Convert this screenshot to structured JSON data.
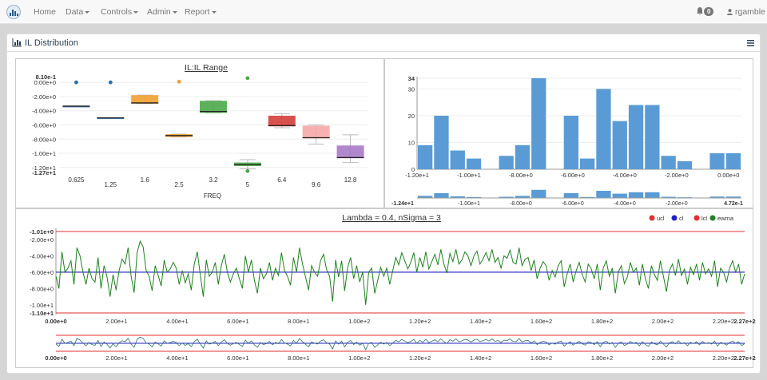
{
  "nav": {
    "items": [
      {
        "label": "Home",
        "dropdown": false
      },
      {
        "label": "Data",
        "dropdown": true
      },
      {
        "label": "Controls",
        "dropdown": true
      },
      {
        "label": "Admin",
        "dropdown": true
      },
      {
        "label": "Report",
        "dropdown": true
      }
    ],
    "notification_count": "0",
    "user": "rgamble"
  },
  "panel": {
    "title": "IL Distribution",
    "icon": "bar-chart-icon",
    "menu_icon": "hamburger-menu-icon"
  },
  "chart_data": [
    {
      "type": "box",
      "title": "IL:IL Range",
      "xlabel": "FREQ",
      "ylabel": "",
      "ylim": [
        -12.7,
        0.81
      ],
      "y_tick_labels": [
        "8.10e-1",
        "0.00e+0",
        "-2.00e+0",
        "-4.00e+0",
        "-6.00e+0",
        "-8.00e+0",
        "-1.00e+1",
        "-1.20e+1",
        "-1.27e+1"
      ],
      "categories": [
        "0.625",
        "1.25",
        "1.6",
        "2.5",
        "3.2",
        "5",
        "6.4",
        "9.6",
        "12.8"
      ],
      "series": [
        {
          "color": "#2f6fa8",
          "q1": -3.35,
          "median": -3.35,
          "q3": -3.35,
          "low": -3.35,
          "high": -3.35,
          "outliers": [
            0.0
          ]
        },
        {
          "color": "#2f6fa8",
          "q1": -5.0,
          "median": -5.0,
          "q3": -5.0,
          "low": -5.0,
          "high": -5.0,
          "outliers": [
            0.0
          ]
        },
        {
          "color": "#f0a030",
          "q1": -3.0,
          "median": -2.9,
          "q3": -1.8,
          "low": -3.0,
          "high": -1.8,
          "outliers": []
        },
        {
          "color": "#f0a030",
          "q1": -7.7,
          "median": -7.5,
          "q3": -7.3,
          "low": -7.7,
          "high": -7.3,
          "outliers": [
            0.1
          ]
        },
        {
          "color": "#4aa84a",
          "q1": -4.3,
          "median": -4.1,
          "q3": -2.6,
          "low": -4.3,
          "high": -2.6,
          "outliers": []
        },
        {
          "color": "#4aa84a",
          "q1": -11.8,
          "median": -11.6,
          "q3": -11.3,
          "low": -12.2,
          "high": -10.9,
          "outliers": [
            0.6,
            -12.5
          ]
        },
        {
          "color": "#d43f3a",
          "q1": -6.2,
          "median": -6.1,
          "q3": -4.7,
          "low": -6.4,
          "high": -4.4,
          "outliers": []
        },
        {
          "color": "#f7a8a8",
          "q1": -7.9,
          "median": -7.8,
          "q3": -6.1,
          "low": -8.7,
          "high": -6.0,
          "outliers": []
        },
        {
          "color": "#a87ac8",
          "q1": -10.7,
          "median": -10.6,
          "q3": -8.9,
          "low": -11.3,
          "high": -7.4,
          "outliers": []
        }
      ]
    },
    {
      "type": "bar",
      "title": "",
      "x_tick_labels": [
        "-1.20e+1",
        "-1.00e+1",
        "-8.00e+0",
        "-6.00e+0",
        "-4.00e+0",
        "-2.00e+0",
        "0.00e+0"
      ],
      "y_tick_labels": [
        "34",
        "30",
        "20",
        "10",
        "0"
      ],
      "ylim": [
        0,
        34
      ],
      "xlim": [
        -12.0,
        0.5
      ],
      "navigator_labels": [
        "-1.24e+1",
        "-1.00e+1",
        "-8.00e+0",
        "-6.00e+0",
        "-4.00e+0",
        "-2.00e+0",
        "4.72e-1"
      ],
      "color": "#5b9bd5",
      "values": [
        9,
        20,
        7,
        4,
        0,
        5,
        9,
        34,
        0,
        20,
        4,
        30,
        18,
        24,
        24,
        5,
        3,
        0,
        6,
        6
      ]
    },
    {
      "type": "line",
      "title": "Lambda = 0.4, nSigma = 3",
      "legend": [
        "ucl",
        "cl",
        "lcl",
        "ewma"
      ],
      "legend_colors": [
        "#e03030",
        "#2020c0",
        "#e03030",
        "#208020"
      ],
      "ylim": [
        -11.0,
        -1.01
      ],
      "y_tick_labels": [
        "-1.01e+0",
        "-2.00e+0",
        "-4.00e+0",
        "-6.00e+0",
        "-8.00e+0",
        "-1.00e+1",
        "-1.10e+1"
      ],
      "x_tick_labels": [
        "0.00e+0",
        "2.00e+1",
        "4.00e+1",
        "6.00e+1",
        "8.00e+1",
        "1.00e+2",
        "1.20e+2",
        "1.40e+2",
        "1.60e+2",
        "1.80e+2",
        "2.00e+2",
        "2.20e+2",
        "2.27e+2"
      ],
      "xlim": [
        0,
        227
      ],
      "ucl": -1.01,
      "cl": -6.0,
      "lcl": -11.0,
      "ewma": [
        -6.5,
        -8.0,
        -3.5,
        -6.0,
        -5.5,
        -4.6,
        -7.5,
        -3.0,
        -4.0,
        -6.0,
        -7.5,
        -5.5,
        -6.8,
        -7.2,
        -4.2,
        -8.0,
        -5.2,
        -6.6,
        -9.0,
        -6.3,
        -8.2,
        -5.8,
        -4.4,
        -5.0,
        -3.0,
        -6.5,
        -8.5,
        -3.6,
        -2.2,
        -2.9,
        -5.8,
        -6.5,
        -8.3,
        -5.2,
        -6.4,
        -7.7,
        -4.5,
        -6.0,
        -5.6,
        -4.8,
        -5.5,
        -7.5,
        -5.8,
        -7.3,
        -6.2,
        -8.2,
        -5.0,
        -3.5,
        -6.3,
        -9.0,
        -4.5,
        -6.5,
        -6.0,
        -4.8,
        -7.5,
        -5.2,
        -3.8,
        -6.0,
        -7.2,
        -6.2,
        -5.5,
        -6.8,
        -8.0,
        -4.0,
        -6.0,
        -4.5,
        -7.0,
        -8.6,
        -5.5,
        -6.8,
        -6.2,
        -4.8,
        -7.0,
        -5.5,
        -6.4,
        -3.6,
        -5.8,
        -6.5,
        -7.6,
        -4.2,
        -6.0,
        -3.0,
        -5.0,
        -6.6,
        -8.2,
        -5.2,
        -6.0,
        -6.5,
        -4.6,
        -3.8,
        -5.7,
        -6.5,
        -9.6,
        -4.5,
        -6.6,
        -4.6,
        -8.3,
        -5.4,
        -4.2,
        -6.8,
        -5.2,
        -7.2,
        -6.0,
        -10.0,
        -6.0,
        -5.5,
        -8.6,
        -7.0,
        -5.4,
        -6.5,
        -5.5,
        -7.5,
        -5.8,
        -4.2,
        -5.1,
        -3.6,
        -4.6,
        -5.6,
        -4.8,
        -3.6,
        -6.0,
        -4.2,
        -5.4,
        -3.5,
        -5.6,
        -4.7,
        -3.8,
        -5.1,
        -3.2,
        -5.0,
        -6.1,
        -3.7,
        -4.7,
        -3.2,
        -5.0,
        -4.5,
        -3.5,
        -4.0,
        -5.2,
        -4.0,
        -3.4,
        -5.0,
        -4.4,
        -3.6,
        -4.6,
        -3.2,
        -4.8,
        -4.2,
        -5.5,
        -4.0,
        -4.3,
        -3.3,
        -4.8,
        -5.0,
        -3.0,
        -5.2,
        -4.4,
        -4.2,
        -5.8,
        -4.5,
        -6.8,
        -5.5,
        -4.7,
        -5.2,
        -7.0,
        -5.8,
        -6.6,
        -5.2,
        -4.6,
        -7.8,
        -6.2,
        -5.0,
        -7.2,
        -5.8,
        -4.8,
        -6.3,
        -7.2,
        -5.0,
        -5.6,
        -6.8,
        -5.0,
        -8.2,
        -5.5,
        -4.6,
        -6.5,
        -5.5,
        -8.6,
        -6.0,
        -5.2,
        -7.4,
        -6.6,
        -4.8,
        -6.0,
        -5.5,
        -7.6,
        -5.0,
        -6.8,
        -8.0,
        -5.2,
        -6.3,
        -7.0,
        -4.6,
        -6.5,
        -8.4,
        -5.8,
        -5.0,
        -6.4,
        -4.4,
        -6.4,
        -5.6,
        -7.5,
        -5.4,
        -6.3,
        -5.0,
        -7.0,
        -4.8,
        -6.2,
        -5.6,
        -6.5,
        -4.6,
        -7.8,
        -5.5,
        -6.0,
        -7.2,
        -5.5,
        -4.6,
        -6.0,
        -5.0,
        -7.5,
        -6.2
      ]
    }
  ]
}
